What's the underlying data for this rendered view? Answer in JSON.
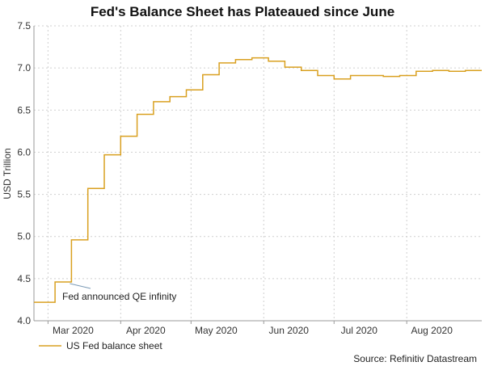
{
  "chart_data": {
    "type": "line",
    "title": "Fed's Balance Sheet has Plateaued since June",
    "ylabel": "USD Trillion",
    "xlabel": "",
    "ylim": [
      4.0,
      7.5
    ],
    "yticks": [
      "4.0",
      "4.5",
      "5.0",
      "5.5",
      "6.0",
      "6.5",
      "7.0",
      "7.5"
    ],
    "xlim": [
      "2020-02-24",
      "2020-09-02"
    ],
    "xticks": [
      {
        "label": "Mar 2020",
        "date": "2020-03-01"
      },
      {
        "label": "Apr 2020",
        "date": "2020-04-01"
      },
      {
        "label": "May 2020",
        "date": "2020-05-01"
      },
      {
        "label": "Jun 2020",
        "date": "2020-06-01"
      },
      {
        "label": "Jul 2020",
        "date": "2020-07-01"
      },
      {
        "label": "Aug 2020",
        "date": "2020-08-01"
      }
    ],
    "grid": true,
    "step": true,
    "line_color": "#d9a020",
    "series": [
      {
        "name": "US Fed balance sheet",
        "x": [
          "2020-02-24",
          "2020-03-04",
          "2020-03-11",
          "2020-03-18",
          "2020-03-25",
          "2020-04-01",
          "2020-04-08",
          "2020-04-15",
          "2020-04-22",
          "2020-04-29",
          "2020-05-06",
          "2020-05-13",
          "2020-05-20",
          "2020-05-27",
          "2020-06-03",
          "2020-06-10",
          "2020-06-17",
          "2020-06-24",
          "2020-07-01",
          "2020-07-08",
          "2020-07-15",
          "2020-07-22",
          "2020-07-29",
          "2020-08-05",
          "2020-08-12",
          "2020-08-19",
          "2020-08-26",
          "2020-09-02"
        ],
        "values": [
          4.22,
          4.46,
          4.96,
          5.57,
          5.97,
          6.19,
          6.45,
          6.6,
          6.66,
          6.74,
          6.92,
          7.06,
          7.1,
          7.12,
          7.08,
          7.01,
          6.97,
          6.91,
          6.87,
          6.91,
          6.91,
          6.9,
          6.91,
          6.96,
          6.97,
          6.96,
          6.97,
          6.97
        ]
      }
    ],
    "annotations": [
      {
        "text": "Fed announced QE infinity",
        "x": "2020-03-11",
        "y": 4.46
      }
    ],
    "legend_position": "bottom-left",
    "source": "Source: Refinitiv Datastream"
  }
}
